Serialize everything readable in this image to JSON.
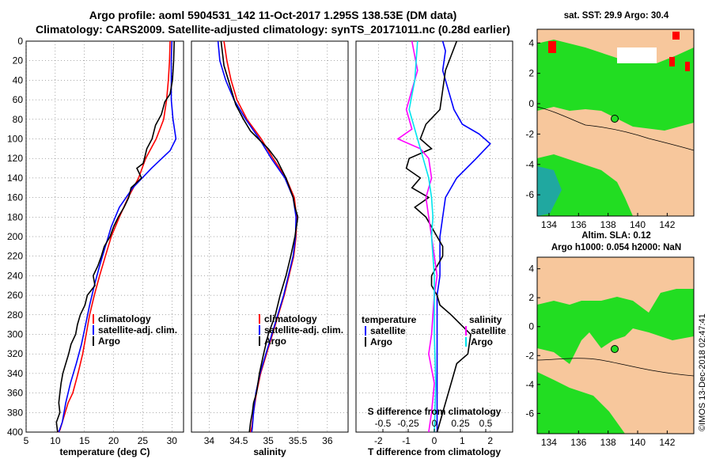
{
  "title_line1": "Argo profile: aoml 5904531_142 11-Oct-2017 1.295S 138.53E (DM data)",
  "title_line2": "Climatology: CARS2009. Satellite-adjusted climatology: synTS_20171011.nc (0.28d earlier)",
  "map1_title": "sat. SST: 29.9 Argo: 30.4",
  "map2_title_line1": "Altim. SLA: 0.12",
  "map2_title_line2": "Argo h1000: 0.054 h2000: NaN",
  "side_label": "©IMOS 13-Dec-2018 02:47:41",
  "colors": {
    "climatology": "#ff0000",
    "satellite": "#0000ff",
    "argo": "#000000",
    "sat_salinity": "#ff00ff",
    "argo_salinity": "#00e5ee",
    "land": "#f7c79c",
    "green": "#22dd22",
    "teal": "#20a8a0"
  },
  "chart_data": [
    {
      "type": "line",
      "xlabel": "temperature (deg C)",
      "xlim": [
        5,
        32
      ],
      "xticks": [
        "5",
        "10",
        "15",
        "20",
        "25",
        "30"
      ],
      "ylim": [
        400,
        0
      ],
      "yticks": [
        "0",
        "20",
        "40",
        "60",
        "80",
        "100",
        "120",
        "140",
        "160",
        "180",
        "200",
        "220",
        "240",
        "260",
        "280",
        "300",
        "320",
        "340",
        "360",
        "380",
        "400"
      ],
      "legend": [
        "climatology",
        "satellite-adj. clim.",
        "Argo"
      ],
      "series": [
        {
          "name": "climatology",
          "color": "#ff0000",
          "x": [
            29.7,
            29.6,
            29.4,
            29.1,
            28.6,
            27.3,
            25.5,
            24.3,
            22.5,
            21.0,
            19.6,
            18.6,
            17.6,
            16.7,
            15.9,
            15.3,
            14.7,
            13.9,
            13.0,
            12.2,
            11.7,
            11.2,
            10.8,
            10.4
          ],
          "y": [
            0,
            20,
            40,
            60,
            80,
            100,
            120,
            140,
            160,
            180,
            200,
            220,
            240,
            260,
            280,
            300,
            320,
            340,
            360,
            370,
            380,
            390,
            398,
            400
          ]
        },
        {
          "name": "satellite-adj. clim.",
          "color": "#0000ff",
          "x": [
            30.0,
            29.9,
            29.9,
            29.9,
            30.2,
            30.7,
            29.7,
            26.5,
            23.3,
            21.0,
            19.6,
            18.6,
            17.6,
            16.7,
            15.9,
            15.2,
            14.5,
            13.6,
            12.6,
            11.8,
            11.2,
            10.6
          ],
          "y": [
            0,
            20,
            40,
            60,
            80,
            100,
            112,
            130,
            150,
            170,
            190,
            210,
            230,
            250,
            270,
            290,
            310,
            330,
            350,
            370,
            390,
            400
          ]
        },
        {
          "name": "Argo",
          "color": "#000000",
          "x": [
            30.4,
            30.3,
            30.1,
            29.7,
            28.8,
            28.2,
            27.2,
            26.6,
            25.7,
            25.1,
            24.0,
            24.8,
            23.0,
            22.6,
            21.8,
            20.8,
            20.0,
            19.4,
            18.4,
            17.9,
            17.3,
            16.5,
            16.8,
            15.5,
            15.1,
            14.3,
            13.8,
            13.5,
            12.7,
            12.3,
            11.8,
            11.3,
            11.0,
            10.8,
            10.6,
            10.8,
            10.2,
            10.4
          ],
          "y": [
            0,
            20,
            40,
            54,
            62,
            75,
            86,
            100,
            110,
            125,
            130,
            140,
            150,
            160,
            170,
            180,
            190,
            200,
            210,
            220,
            230,
            240,
            250,
            260,
            270,
            280,
            290,
            300,
            310,
            320,
            330,
            340,
            350,
            360,
            370,
            380,
            390,
            400
          ]
        }
      ]
    },
    {
      "type": "line",
      "xlabel": "salinity",
      "xlim": [
        33.7,
        36.35
      ],
      "xticks": [
        "34",
        "34.5",
        "35",
        "35.5",
        "36"
      ],
      "ylim": [
        400,
        0
      ],
      "legend": [
        "climatology",
        "satellite-adj. clim.",
        "Argo"
      ],
      "series": [
        {
          "name": "climatology",
          "color": "#ff0000",
          "x": [
            34.25,
            34.3,
            34.37,
            34.47,
            34.64,
            34.88,
            35.08,
            35.3,
            35.44,
            35.48,
            35.47,
            35.43,
            35.35,
            35.27,
            35.17,
            35.07,
            34.97,
            34.87,
            34.8,
            34.75,
            34.72,
            34.7
          ],
          "y": [
            0,
            20,
            40,
            60,
            80,
            100,
            120,
            140,
            160,
            180,
            200,
            220,
            240,
            260,
            280,
            300,
            320,
            340,
            360,
            380,
            395,
            400
          ]
        },
        {
          "name": "satellite-adj. clim.",
          "color": "#0000ff",
          "x": [
            34.15,
            34.18,
            34.28,
            34.42,
            34.62,
            34.85,
            35.05,
            35.28,
            35.42,
            35.47,
            35.46,
            35.42,
            35.34,
            35.26,
            35.16,
            35.06,
            34.96,
            34.86,
            34.79,
            34.75,
            34.73,
            34.72
          ],
          "y": [
            0,
            20,
            40,
            60,
            80,
            100,
            120,
            140,
            160,
            180,
            200,
            220,
            240,
            260,
            280,
            300,
            320,
            340,
            360,
            380,
            395,
            400
          ]
        },
        {
          "name": "Argo",
          "color": "#000000",
          "x": [
            34.2,
            34.22,
            34.25,
            34.35,
            34.45,
            34.58,
            34.7,
            35.0,
            35.15,
            35.3,
            35.42,
            35.45,
            35.5,
            35.45,
            35.38,
            35.3,
            35.2,
            35.12,
            35.0,
            34.92,
            34.85,
            34.8,
            34.75,
            34.73,
            34.7,
            34.68
          ],
          "y": [
            0,
            10,
            25,
            45,
            65,
            80,
            92,
            110,
            122,
            140,
            160,
            170,
            180,
            200,
            220,
            240,
            260,
            280,
            300,
            320,
            340,
            360,
            370,
            380,
            390,
            400
          ]
        }
      ]
    },
    {
      "type": "line",
      "xlabel": "T difference from climatology",
      "xlabel2": "S difference from climatology",
      "xlim": [
        -2.8,
        2.8
      ],
      "xticks": [
        "-2",
        "-1",
        "0",
        "1",
        "2"
      ],
      "xticks2": [
        "-0.5",
        "-0.25",
        "0",
        "0.25",
        "0.5"
      ],
      "ylim": [
        400,
        0
      ],
      "legend_left": [
        "temperature",
        "satellite",
        "Argo"
      ],
      "legend_right": [
        "salinity",
        "satellite",
        "Argo"
      ],
      "series": [
        {
          "name": "satellite temperature",
          "color": "#0000ff",
          "x": [
            0.3,
            0.4,
            0.3,
            0.5,
            0.7,
            1.0,
            1.6,
            2.0,
            1.5,
            0.8,
            0.4,
            0.3,
            0.2,
            0.2,
            0.2,
            0.1,
            0.1,
            0.1,
            0.1,
            0.1,
            0.1,
            0.1,
            0.1,
            0.1,
            0.1
          ],
          "y": [
            0,
            10,
            30,
            50,
            70,
            85,
            95,
            105,
            120,
            140,
            160,
            180,
            200,
            220,
            240,
            260,
            280,
            300,
            320,
            340,
            360,
            370,
            380,
            390,
            400
          ]
        },
        {
          "name": "Argo temperature",
          "color": "#000000",
          "x": [
            0.8,
            0.6,
            0.4,
            0.3,
            0.2,
            -0.3,
            -0.5,
            -0.1,
            -0.9,
            -1.0,
            -0.5,
            -0.8,
            -0.2,
            -0.7,
            -0.3,
            0.1,
            0.3,
            0.3,
            -0.1,
            -0.1,
            0.1,
            0.2,
            0.6,
            1.3,
            1.2,
            0.8,
            0.7,
            0.5,
            0.3,
            0.2,
            0.1
          ],
          "y": [
            0,
            15,
            30,
            50,
            70,
            85,
            100,
            110,
            120,
            130,
            140,
            150,
            160,
            170,
            180,
            200,
            210,
            220,
            240,
            250,
            260,
            270,
            280,
            300,
            320,
            330,
            340,
            360,
            380,
            390,
            400
          ]
        },
        {
          "name": "satellite salinity",
          "color": "#ff00ff",
          "x": [
            -0.8,
            -0.6,
            -1.0,
            -0.8,
            -1.3,
            -0.5,
            -0.2,
            -0.1,
            -0.3,
            -0.2,
            -0.1,
            0,
            0.1,
            0,
            -0.1,
            -0.2,
            0,
            -0.1,
            -0.2
          ],
          "y": [
            0,
            30,
            70,
            90,
            100,
            110,
            120,
            140,
            160,
            180,
            200,
            220,
            240,
            260,
            300,
            320,
            350,
            380,
            400
          ]
        },
        {
          "name": "Argo salinity",
          "color": "#00e5ee",
          "x": [
            -0.6,
            -0.7,
            -0.9,
            -0.6,
            -0.4,
            -0.2,
            -0.1,
            -0.05,
            -0.1,
            0,
            0,
            0.05,
            0
          ],
          "y": [
            0,
            40,
            70,
            100,
            120,
            140,
            160,
            180,
            200,
            240,
            300,
            350,
            400
          ]
        }
      ]
    }
  ],
  "maps": [
    {
      "xticks": [
        "134",
        "136",
        "138",
        "140",
        "142"
      ],
      "yticks": [
        "4",
        "2",
        "0",
        "-2",
        "-4",
        "-6"
      ]
    },
    {
      "xticks": [
        "134",
        "136",
        "138",
        "140",
        "142"
      ],
      "yticks": [
        "4",
        "2",
        "0",
        "-2",
        "-4",
        "-6"
      ]
    }
  ]
}
